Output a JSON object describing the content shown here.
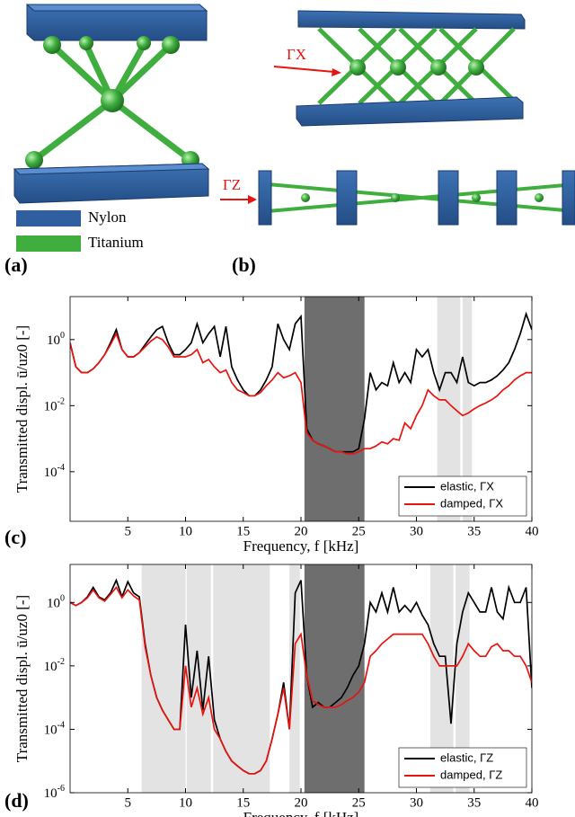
{
  "figure": {
    "panels": [
      "(a)",
      "(b)",
      "(c)",
      "(d)"
    ],
    "materials": [
      {
        "name": "Nylon",
        "color": "#2f5f9e"
      },
      {
        "name": "Titanium",
        "color": "#3fae3f"
      }
    ],
    "directions": [
      "ΓX",
      "ΓZ"
    ]
  },
  "chart_data": [
    {
      "type": "line",
      "xlabel": "Frequency, f [kHz]",
      "ylabel": "Transmitted displ. ū/uz0 [-]",
      "xlim": [
        0,
        40
      ],
      "xticks": [
        5,
        10,
        15,
        20,
        25,
        30,
        35,
        40
      ],
      "ylim": [
        3.16e-06,
        20
      ],
      "log_y": true,
      "yticks": [
        {
          "value": 0.0001,
          "label": "10^-4"
        },
        {
          "value": 0.01,
          "label": "10^-2"
        },
        {
          "value": 1,
          "label": "10^0"
        }
      ],
      "legend": "lower right",
      "bands": [
        {
          "x0": 20.3,
          "x1": 25.5,
          "color": "#6e6e6e"
        },
        {
          "x0": 31.8,
          "x1": 33.8,
          "color": "#e3e3e3"
        },
        {
          "x0": 34.0,
          "x1": 34.8,
          "color": "#e3e3e3"
        }
      ],
      "x": [
        0,
        0.5,
        1,
        1.5,
        2,
        2.5,
        3,
        3.5,
        4,
        4.5,
        5,
        5.5,
        6,
        6.5,
        7,
        7.5,
        8,
        8.5,
        9,
        9.5,
        10,
        10.5,
        11,
        11.5,
        12,
        12.5,
        13,
        13.5,
        14,
        14.5,
        15,
        15.5,
        16,
        16.5,
        17,
        17.5,
        18,
        18.5,
        19,
        19.5,
        20,
        20.5,
        21,
        21.5,
        22,
        22.5,
        23,
        23.5,
        24,
        24.5,
        25,
        25.5,
        26,
        26.5,
        27,
        27.5,
        28,
        28.5,
        29,
        29.5,
        30,
        30.5,
        31,
        31.5,
        32,
        32.5,
        33,
        33.5,
        34,
        34.5,
        35,
        35.5,
        36,
        36.5,
        37,
        37.5,
        38,
        38.5,
        39,
        39.5,
        40
      ],
      "series": [
        {
          "name": "elastic, ΓX",
          "color": "#000000",
          "values": [
            0.8,
            0.15,
            0.1,
            0.1,
            0.13,
            0.2,
            0.35,
            0.8,
            2,
            0.5,
            0.3,
            0.3,
            0.4,
            0.7,
            1.2,
            2,
            2.5,
            0.8,
            0.35,
            0.35,
            0.5,
            0.8,
            3,
            0.8,
            1.5,
            2.5,
            0.3,
            2.5,
            0.15,
            0.06,
            0.03,
            0.02,
            0.02,
            0.03,
            0.06,
            0.15,
            3,
            1,
            0.5,
            3,
            5,
            0.002,
            0.0009,
            0.0007,
            0.0006,
            0.0005,
            0.0004,
            0.0004,
            0.0004,
            0.0004,
            0.0005,
            0.004,
            0.1,
            0.03,
            0.05,
            0.04,
            0.2,
            0.05,
            0.1,
            0.05,
            0.5,
            0.3,
            0.5,
            0.1,
            0.03,
            0.1,
            0.1,
            0.05,
            0.3,
            0.05,
            0.04,
            0.05,
            0.05,
            0.06,
            0.08,
            0.12,
            0.2,
            0.5,
            1.5,
            6,
            2
          ]
        },
        {
          "name": "damped, ΓX",
          "color": "#e8140f",
          "values": [
            0.8,
            0.15,
            0.1,
            0.1,
            0.13,
            0.2,
            0.35,
            0.7,
            1.5,
            0.5,
            0.3,
            0.3,
            0.4,
            0.6,
            0.9,
            1.2,
            1,
            0.6,
            0.3,
            0.3,
            0.3,
            0.35,
            0.5,
            0.2,
            0.25,
            0.15,
            0.1,
            0.12,
            0.05,
            0.03,
            0.025,
            0.02,
            0.02,
            0.025,
            0.04,
            0.06,
            0.1,
            0.07,
            0.08,
            0.1,
            0.05,
            0.0015,
            0.0009,
            0.0007,
            0.0006,
            0.0005,
            0.0004,
            0.0004,
            0.00035,
            0.00035,
            0.0004,
            0.0005,
            0.0005,
            0.0006,
            0.0008,
            0.0007,
            0.001,
            0.0009,
            0.003,
            0.002,
            0.005,
            0.01,
            0.03,
            0.02,
            0.015,
            0.015,
            0.01,
            0.007,
            0.005,
            0.006,
            0.008,
            0.01,
            0.012,
            0.015,
            0.02,
            0.03,
            0.04,
            0.06,
            0.08,
            0.1,
            0.1
          ]
        }
      ]
    },
    {
      "type": "line",
      "xlabel": "Frequency, f [kHz]",
      "ylabel": "Transmitted displ. ū/uz0 [-]",
      "xlim": [
        0,
        40
      ],
      "xticks": [
        5,
        10,
        15,
        20,
        25,
        30,
        35,
        40
      ],
      "ylim": [
        1e-06,
        15.8
      ],
      "log_y": true,
      "yticks": [
        {
          "value": 1e-06,
          "label": "10^-6"
        },
        {
          "value": 0.0001,
          "label": "10^-4"
        },
        {
          "value": 0.01,
          "label": "10^-2"
        },
        {
          "value": 1,
          "label": "10^0"
        }
      ],
      "legend": "lower right",
      "bands": [
        {
          "x0": 6.2,
          "x1": 10.0,
          "color": "#e3e3e3"
        },
        {
          "x0": 10.1,
          "x1": 12.2,
          "color": "#e3e3e3"
        },
        {
          "x0": 12.4,
          "x1": 17.3,
          "color": "#e3e3e3"
        },
        {
          "x0": 19.0,
          "x1": 19.9,
          "color": "#e3e3e3"
        },
        {
          "x0": 20.3,
          "x1": 25.5,
          "color": "#6e6e6e"
        },
        {
          "x0": 31.2,
          "x1": 33.2,
          "color": "#e3e3e3"
        },
        {
          "x0": 33.4,
          "x1": 34.6,
          "color": "#e3e3e3"
        }
      ],
      "x": [
        0,
        0.5,
        1,
        1.5,
        2,
        2.5,
        3,
        3.5,
        4,
        4.5,
        5,
        5.5,
        6,
        6.5,
        7,
        7.5,
        8,
        8.5,
        9,
        9.5,
        10,
        10.5,
        11,
        11.5,
        12,
        12.5,
        13,
        13.5,
        14,
        14.5,
        15,
        15.5,
        16,
        16.5,
        17,
        17.5,
        18,
        18.5,
        19,
        19.5,
        20,
        20.5,
        21,
        21.5,
        22,
        22.5,
        23,
        23.5,
        24,
        24.5,
        25,
        25.5,
        26,
        26.5,
        27,
        27.5,
        28,
        28.5,
        29,
        29.5,
        30,
        30.5,
        31,
        31.5,
        32,
        32.5,
        33,
        33.5,
        34,
        34.5,
        35,
        35.5,
        36,
        36.5,
        37,
        37.5,
        38,
        38.5,
        39,
        39.5,
        40
      ],
      "series": [
        {
          "name": "elastic, ΓZ",
          "color": "#000000",
          "values": [
            1,
            0.8,
            1,
            1.5,
            3,
            1.5,
            1.2,
            2,
            5,
            1.5,
            4.5,
            2,
            1.5,
            0.05,
            0.005,
            0.001,
            0.0004,
            0.0002,
            0.0001,
            0.0001,
            0.2,
            0.001,
            0.03,
            0.0004,
            0.02,
            0.0002,
            5e-05,
            2e-05,
            1e-05,
            7e-06,
            5e-06,
            4e-06,
            4e-06,
            5e-06,
            1e-05,
            5e-05,
            0.0003,
            0.003,
            0.0001,
            2,
            5,
            0.005,
            0.0005,
            0.0007,
            0.0005,
            0.0005,
            0.0007,
            0.001,
            0.002,
            0.005,
            0.01,
            0.05,
            1,
            0.5,
            2,
            0.5,
            3,
            0.5,
            0.8,
            0.5,
            1,
            0.4,
            0.2,
            0.05,
            0.02,
            0.02,
            0.00015,
            0.05,
            0.5,
            2,
            1,
            0.5,
            0.5,
            3,
            0.5,
            0.3,
            3,
            1,
            1,
            3,
            0.002
          ]
        },
        {
          "name": "damped, ΓZ",
          "color": "#e8140f",
          "values": [
            1,
            0.8,
            1,
            1.4,
            2.5,
            1.4,
            1.1,
            1.8,
            3,
            1.4,
            2.5,
            1.6,
            1.2,
            0.04,
            0.005,
            0.001,
            0.0004,
            0.0002,
            0.0001,
            0.0001,
            0.01,
            0.0005,
            0.002,
            0.0003,
            0.001,
            0.0001,
            5e-05,
            2e-05,
            1e-05,
            7e-06,
            5e-06,
            4e-06,
            4e-06,
            5e-06,
            1e-05,
            5e-05,
            0.0003,
            0.002,
            0.0001,
            0.05,
            0.1,
            0.005,
            0.0008,
            0.0006,
            0.0005,
            0.0005,
            0.0005,
            0.0006,
            0.0008,
            0.001,
            0.0015,
            0.003,
            0.02,
            0.03,
            0.05,
            0.07,
            0.1,
            0.1,
            0.1,
            0.1,
            0.1,
            0.1,
            0.05,
            0.02,
            0.01,
            0.01,
            0.01,
            0.01,
            0.02,
            0.05,
            0.03,
            0.02,
            0.02,
            0.04,
            0.05,
            0.03,
            0.03,
            0.02,
            0.02,
            0.01,
            0.003
          ]
        }
      ]
    }
  ]
}
